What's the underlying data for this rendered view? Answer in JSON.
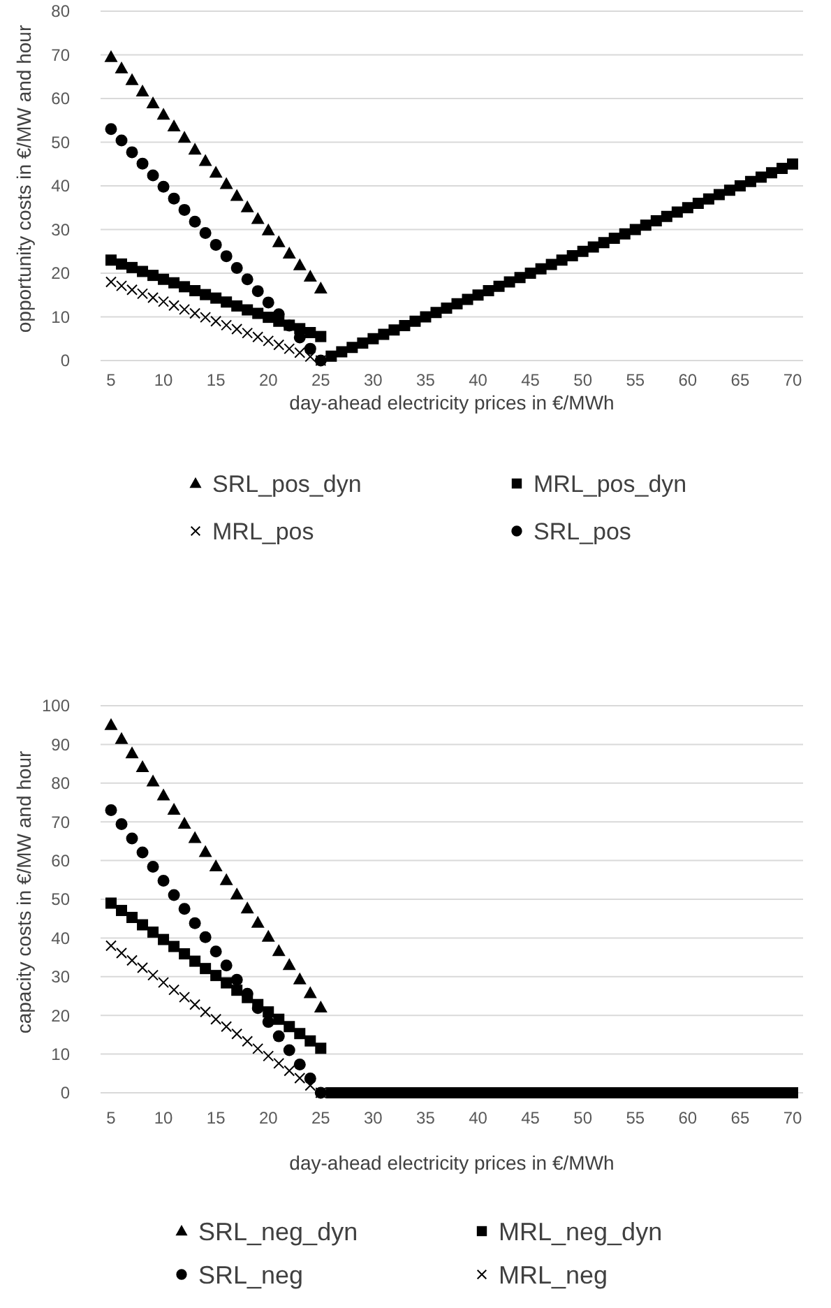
{
  "chart_data": [
    {
      "type": "scatter",
      "xlabel": "day-ahead electricity prices in €/MWh",
      "ylabel": "opportunity costs in €/MW and hour",
      "x": [
        5,
        6,
        7,
        8,
        9,
        10,
        11,
        12,
        13,
        14,
        15,
        16,
        17,
        18,
        19,
        20,
        21,
        22,
        23,
        24,
        25
      ],
      "xlim": [
        4,
        71
      ],
      "xticks": [
        5,
        10,
        15,
        20,
        25,
        30,
        35,
        40,
        45,
        50,
        55,
        60,
        65,
        70
      ],
      "ylim": [
        0,
        80
      ],
      "yticks": [
        0,
        10,
        20,
        30,
        40,
        50,
        60,
        70,
        80
      ],
      "grid": "y",
      "legend": "bottom",
      "series": [
        {
          "name": "SRL_pos_dyn",
          "color": "#000000",
          "marker": "triangle",
          "values": [
            69.5,
            66.9,
            64.2,
            61.6,
            58.9,
            56.3,
            53.6,
            51,
            48.3,
            45.7,
            43,
            40.4,
            37.7,
            35.1,
            32.4,
            29.8,
            27.1,
            24.5,
            21.8,
            19.2,
            16.5
          ]
        },
        {
          "name": "MRL_pos_dyn",
          "color": "#000000",
          "marker": "square",
          "x": [
            5,
            6,
            7,
            8,
            9,
            10,
            11,
            12,
            13,
            14,
            15,
            16,
            17,
            18,
            19,
            20,
            21,
            22,
            23,
            24,
            25,
            26,
            27,
            28,
            29,
            30,
            31,
            32,
            33,
            34,
            35,
            36,
            37,
            38,
            39,
            40,
            41,
            42,
            43,
            44,
            45,
            46,
            47,
            48,
            49,
            50,
            51,
            52,
            53,
            54,
            55,
            56,
            57,
            58,
            59,
            60,
            61,
            62,
            63,
            64,
            65,
            66,
            67,
            68,
            69,
            70
          ],
          "values": [
            23,
            22.1,
            21.3,
            20.4,
            19.5,
            18.6,
            17.8,
            16.9,
            16,
            15.1,
            14.3,
            13.4,
            12.5,
            11.6,
            10.8,
            9.9,
            9,
            8.1,
            7.3,
            6.4,
            5.5,
            1,
            2,
            3,
            4,
            5,
            6,
            7,
            8,
            9,
            10,
            11,
            12,
            13,
            14,
            15,
            16,
            17,
            18,
            19,
            20,
            21,
            22,
            23,
            24,
            25,
            26,
            27,
            28,
            29,
            30,
            31,
            32,
            33,
            34,
            35,
            36,
            37,
            38,
            39,
            40,
            41,
            42,
            43,
            44,
            45
          ]
        },
        {
          "name": "MRL_pos",
          "color": "#000000",
          "marker": "cross",
          "values": [
            18,
            17.1,
            16.2,
            15.3,
            14.4,
            13.5,
            12.6,
            11.7,
            10.8,
            9.9,
            9,
            8.1,
            7.2,
            6.3,
            5.4,
            4.5,
            3.6,
            2.7,
            1.8,
            0.9,
            0
          ]
        },
        {
          "name": "SRL_pos",
          "color": "#000000",
          "marker": "circle",
          "values": [
            53,
            50.4,
            47.7,
            45.1,
            42.4,
            39.8,
            37.1,
            34.5,
            31.8,
            29.2,
            26.5,
            23.9,
            21.2,
            18.6,
            15.9,
            13.3,
            10.6,
            8,
            5.3,
            2.7,
            0
          ]
        }
      ]
    },
    {
      "type": "scatter",
      "xlabel": "day-ahead electricity prices in €/MWh",
      "ylabel": "capacity costs in €/MW and hour",
      "x": [
        5,
        6,
        7,
        8,
        9,
        10,
        11,
        12,
        13,
        14,
        15,
        16,
        17,
        18,
        19,
        20,
        21,
        22,
        23,
        24,
        25
      ],
      "xlim": [
        4,
        71
      ],
      "xticks": [
        5,
        10,
        15,
        20,
        25,
        30,
        35,
        40,
        45,
        50,
        55,
        60,
        65,
        70
      ],
      "ylim": [
        0,
        100
      ],
      "yticks": [
        0,
        10,
        20,
        30,
        40,
        50,
        60,
        70,
        80,
        90,
        100
      ],
      "grid": "y",
      "legend": "bottom",
      "series": [
        {
          "name": "SRL_neg_dyn",
          "color": "#000000",
          "marker": "triangle",
          "values": [
            95,
            91.4,
            87.7,
            84.1,
            80.4,
            76.8,
            73.1,
            69.5,
            65.8,
            62.2,
            58.5,
            54.9,
            51.2,
            47.6,
            43.9,
            40.3,
            36.6,
            33,
            29.3,
            25.7,
            22
          ]
        },
        {
          "name": "MRL_neg_dyn",
          "color": "#000000",
          "marker": "square",
          "x": [
            5,
            6,
            7,
            8,
            9,
            10,
            11,
            12,
            13,
            14,
            15,
            16,
            17,
            18,
            19,
            20,
            21,
            22,
            23,
            24,
            25,
            26,
            27,
            28,
            29,
            30,
            31,
            32,
            33,
            34,
            35,
            36,
            37,
            38,
            39,
            40,
            41,
            42,
            43,
            44,
            45,
            46,
            47,
            48,
            49,
            50,
            51,
            52,
            53,
            54,
            55,
            56,
            57,
            58,
            59,
            60,
            61,
            62,
            63,
            64,
            65,
            66,
            67,
            68,
            69,
            70
          ],
          "values": [
            49,
            47.1,
            45.3,
            43.4,
            41.5,
            39.6,
            37.8,
            35.9,
            34,
            32.1,
            30.3,
            28.4,
            26.5,
            24.6,
            22.8,
            20.9,
            19,
            17.1,
            15.3,
            13.4,
            11.5,
            0,
            0,
            0,
            0,
            0,
            0,
            0,
            0,
            0,
            0,
            0,
            0,
            0,
            0,
            0,
            0,
            0,
            0,
            0,
            0,
            0,
            0,
            0,
            0,
            0,
            0,
            0,
            0,
            0,
            0,
            0,
            0,
            0,
            0,
            0,
            0,
            0,
            0,
            0,
            0,
            0,
            0,
            0,
            0,
            0
          ]
        },
        {
          "name": "SRL_neg",
          "color": "#000000",
          "marker": "circle",
          "values": [
            73,
            69.4,
            65.7,
            62.1,
            58.4,
            54.8,
            51.1,
            47.5,
            43.8,
            40.2,
            36.5,
            32.9,
            29.2,
            25.6,
            21.9,
            18.3,
            14.6,
            11,
            7.3,
            3.7,
            0
          ]
        },
        {
          "name": "MRL_neg",
          "color": "#000000",
          "marker": "cross",
          "values": [
            38,
            36.1,
            34.2,
            32.3,
            30.4,
            28.5,
            26.6,
            24.7,
            22.8,
            20.9,
            19,
            17.1,
            15.2,
            13.3,
            11.4,
            9.5,
            7.6,
            5.7,
            3.8,
            1.9,
            0
          ]
        }
      ]
    }
  ]
}
